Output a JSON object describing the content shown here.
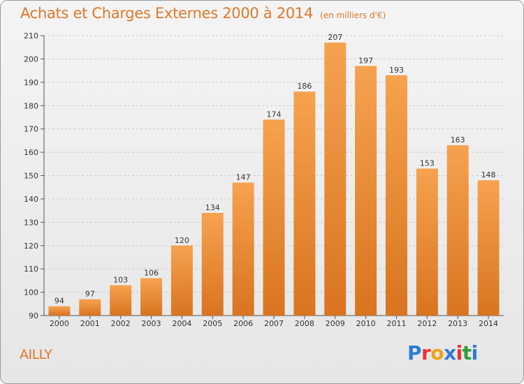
{
  "header": {
    "title": "Achats et Charges Externes 2000 à 2014",
    "subtitle": "(en milliers d'€)"
  },
  "footer": {
    "commune": "AILLY",
    "logo_text": "Proxiti",
    "logo_colors": [
      "#2e7bd6",
      "#e8352b",
      "#f0a11b",
      "#2e7bd6",
      "#e8352b",
      "#2e9c3a",
      "#2e7bd6"
    ]
  },
  "colors": {
    "accent": "#e0782a",
    "bar_light": "#f6a24f",
    "bar_dark": "#d9741f"
  },
  "chart_data": {
    "type": "bar",
    "title": "Achats et Charges Externes 2000 à 2014",
    "subtitle": "(en milliers d'€)",
    "xlabel": "",
    "ylabel": "",
    "categories": [
      "2000",
      "2001",
      "2002",
      "2003",
      "2004",
      "2005",
      "2006",
      "2007",
      "2008",
      "2009",
      "2010",
      "2011",
      "2012",
      "2013",
      "2014"
    ],
    "values": [
      94,
      97,
      103,
      106,
      120,
      134,
      147,
      174,
      186,
      207,
      197,
      193,
      153,
      163,
      148
    ],
    "ylim": [
      90,
      210
    ],
    "yticks": [
      90,
      100,
      110,
      120,
      130,
      140,
      150,
      160,
      170,
      180,
      190,
      200,
      210
    ],
    "grid": true,
    "data_labels": true
  }
}
